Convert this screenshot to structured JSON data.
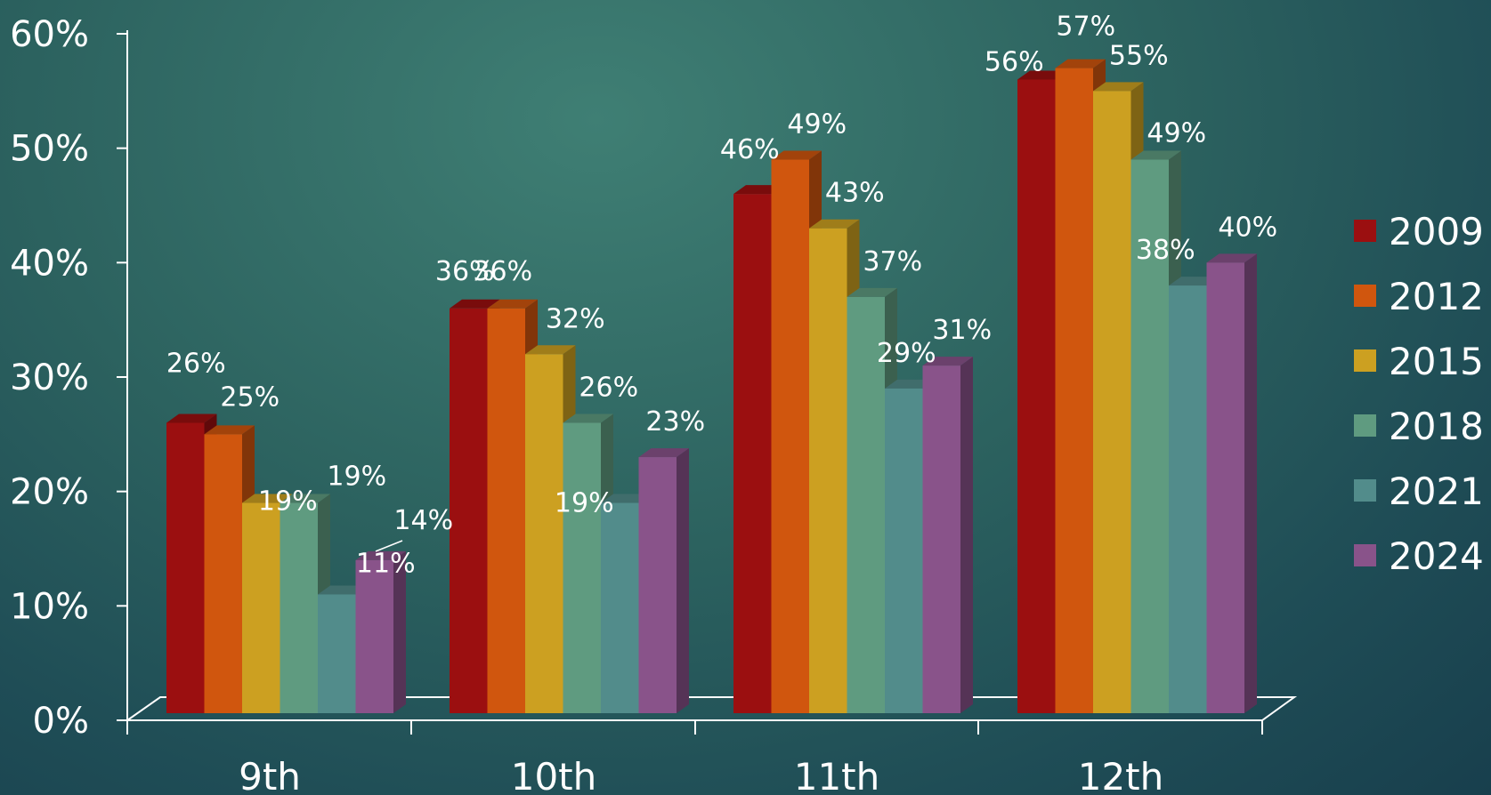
{
  "chart_data": {
    "type": "bar",
    "title": "",
    "xlabel": "",
    "ylabel": "",
    "categories": [
      "9th",
      "10th",
      "11th",
      "12th"
    ],
    "series": [
      {
        "name": "2009",
        "color": "#9b0f10",
        "values": [
          26,
          36,
          46,
          56
        ],
        "labels": [
          "26%",
          "36%",
          "46%",
          "56%"
        ]
      },
      {
        "name": "2012",
        "color": "#d0560e",
        "values": [
          25,
          36,
          49,
          57
        ],
        "labels": [
          "25%",
          "36%",
          "49%",
          "57%"
        ]
      },
      {
        "name": "2015",
        "color": "#cca021",
        "values": [
          19,
          32,
          43,
          55
        ],
        "labels": [
          "19%",
          "32%",
          "43%",
          "55%"
        ]
      },
      {
        "name": "2018",
        "color": "#5f9b80",
        "values": [
          19,
          26,
          37,
          49
        ],
        "labels": [
          "19%",
          "26%",
          "37%",
          "49%"
        ]
      },
      {
        "name": "2021",
        "color": "#528c8b",
        "values": [
          11,
          19,
          29,
          38
        ],
        "labels": [
          "11%",
          "19%",
          "29%",
          "38%"
        ]
      },
      {
        "name": "2024",
        "color": "#89538a",
        "values": [
          14,
          23,
          31,
          40
        ],
        "labels": [
          "14%",
          "23%",
          "31%",
          "40%"
        ]
      }
    ],
    "ylim": [
      0,
      60
    ],
    "yticks": [
      "0%",
      "10%",
      "20%",
      "30%",
      "40%",
      "50%",
      "60%"
    ],
    "grid": false,
    "legend_position": "right"
  }
}
